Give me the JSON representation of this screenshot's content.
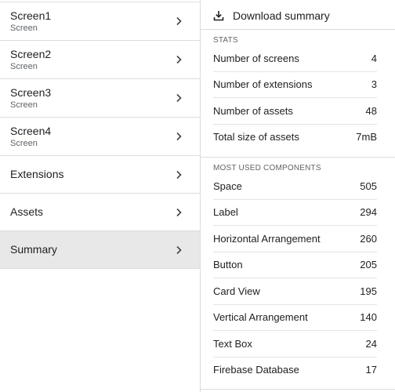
{
  "nav": {
    "items": [
      {
        "label": "Screen1",
        "sub": "Screen"
      },
      {
        "label": "Screen2",
        "sub": "Screen"
      },
      {
        "label": "Screen3",
        "sub": "Screen"
      },
      {
        "label": "Screen4",
        "sub": "Screen"
      },
      {
        "label": "Extensions"
      },
      {
        "label": "Assets"
      },
      {
        "label": "Summary",
        "selected": true
      }
    ]
  },
  "summary": {
    "download_label": "Download summary",
    "stats_title": "STATS",
    "stats": [
      {
        "label": "Number of screens",
        "value": "4"
      },
      {
        "label": "Number of extensions",
        "value": "3"
      },
      {
        "label": "Number of assets",
        "value": "48"
      },
      {
        "label": "Total size of assets",
        "value": "7mB"
      }
    ],
    "components_title": "MOST USED COMPONENTS",
    "components": [
      {
        "label": "Space",
        "value": "505"
      },
      {
        "label": "Label",
        "value": "294"
      },
      {
        "label": "Horizontal Arrangement",
        "value": "260"
      },
      {
        "label": "Button",
        "value": "205"
      },
      {
        "label": "Card View",
        "value": "195"
      },
      {
        "label": "Vertical Arrangement",
        "value": "140"
      },
      {
        "label": "Text Box",
        "value": "24"
      },
      {
        "label": "Firebase Database",
        "value": "17"
      }
    ]
  },
  "colors": {
    "selected_bg": "#e8e8e8",
    "divider": "#dcdcdc"
  },
  "icons": {
    "nav_arrow": "chevron-right-icon",
    "download": "download-icon"
  }
}
